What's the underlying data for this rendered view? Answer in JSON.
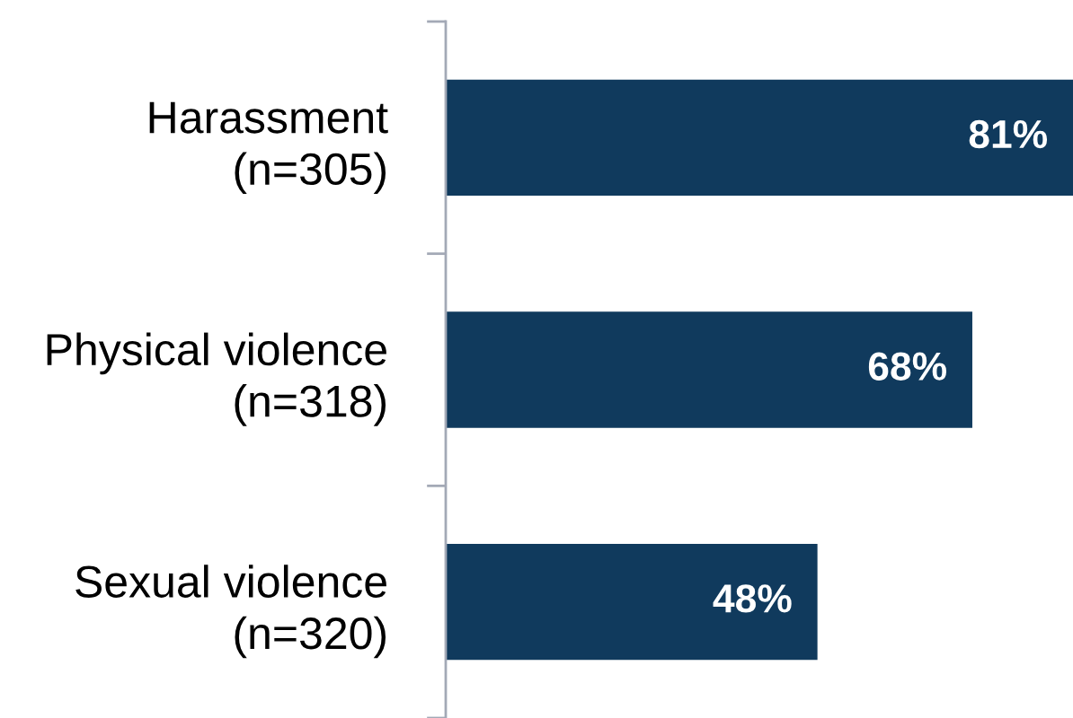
{
  "chart_data": {
    "type": "bar",
    "orientation": "horizontal",
    "categories": [
      "Harassment\n(n=305)",
      "Physical violence\n(n=318)",
      "Sexual violence\n(n=320)"
    ],
    "values": [
      81,
      68,
      48
    ],
    "color": "#103a5d",
    "value_labels": [
      "81%",
      "68%",
      "48%"
    ],
    "xlim": [
      0,
      81
    ],
    "tick_labels": "y"
  }
}
